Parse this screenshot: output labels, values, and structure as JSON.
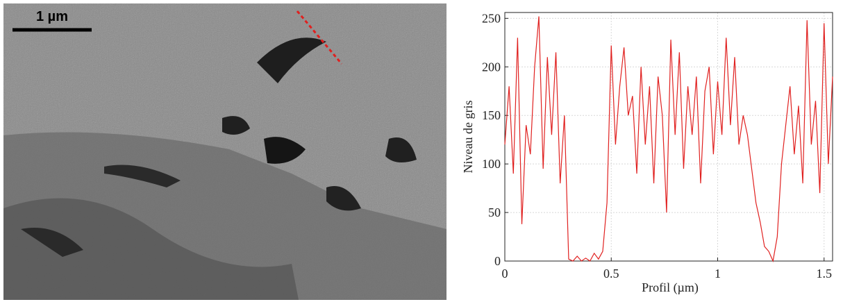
{
  "image": {
    "scale_label": "1 µm"
  },
  "chart_data": {
    "type": "line",
    "x_label": "Profil (µm)",
    "y_label": "Niveau de gris",
    "x": [
      0,
      0.02,
      0.04,
      0.06,
      0.08,
      0.1,
      0.12,
      0.14,
      0.16,
      0.18,
      0.2,
      0.22,
      0.24,
      0.26,
      0.28,
      0.3,
      0.32,
      0.34,
      0.36,
      0.38,
      0.4,
      0.42,
      0.44,
      0.46,
      0.48,
      0.5,
      0.52,
      0.54,
      0.56,
      0.58,
      0.6,
      0.62,
      0.64,
      0.66,
      0.68,
      0.7,
      0.72,
      0.74,
      0.76,
      0.78,
      0.8,
      0.82,
      0.84,
      0.86,
      0.88,
      0.9,
      0.92,
      0.94,
      0.96,
      0.98,
      1.0,
      1.02,
      1.04,
      1.06,
      1.08,
      1.1,
      1.12,
      1.14,
      1.16,
      1.18,
      1.2,
      1.22,
      1.24,
      1.26,
      1.28,
      1.3,
      1.32,
      1.34,
      1.36,
      1.38,
      1.4,
      1.42,
      1.44,
      1.46,
      1.48,
      1.5,
      1.52,
      1.54
    ],
    "values": [
      120,
      180,
      90,
      230,
      38,
      140,
      110,
      200,
      252,
      95,
      210,
      130,
      215,
      80,
      150,
      2,
      0,
      5,
      0,
      3,
      0,
      8,
      2,
      10,
      60,
      222,
      120,
      180,
      220,
      150,
      170,
      90,
      200,
      120,
      180,
      80,
      190,
      150,
      50,
      228,
      130,
      215,
      95,
      180,
      130,
      190,
      80,
      175,
      200,
      110,
      185,
      130,
      230,
      140,
      210,
      120,
      150,
      130,
      95,
      60,
      40,
      15,
      10,
      0,
      25,
      100,
      140,
      180,
      110,
      160,
      80,
      248,
      120,
      165,
      70,
      245,
      100,
      190
    ],
    "color": "#e0201f",
    "xlim": [
      0,
      1.54
    ],
    "ylim": [
      0,
      256
    ],
    "xticks": [
      0,
      0.5,
      1,
      1.5
    ],
    "yticks": [
      0,
      50,
      100,
      150,
      200,
      250
    ],
    "grid": true
  }
}
